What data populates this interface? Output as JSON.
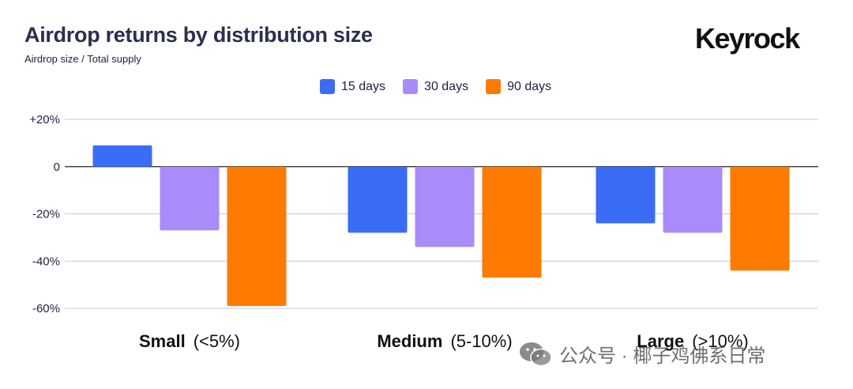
{
  "header": {
    "title": "Airdrop returns by distribution size",
    "subtitle": "Airdrop size / Total supply",
    "brand": "Keyrock"
  },
  "watermark": {
    "text": "公众号 · 椰子鸡佛系日常",
    "icon": "wechat-icon"
  },
  "chart_data": {
    "type": "bar",
    "title": "Airdrop returns by distribution size",
    "subtitle": "Airdrop size / Total supply",
    "xlabel": "",
    "ylabel": "",
    "categories": [
      {
        "bold": "Small",
        "detail": "(<5%)"
      },
      {
        "bold": "Medium",
        "detail": "(5-10%)"
      },
      {
        "bold": "Large",
        "detail": "(>10%)"
      }
    ],
    "series": [
      {
        "name": "15 days",
        "color": "#3b6cf6",
        "values": [
          9,
          -28,
          -24
        ]
      },
      {
        "name": "30 days",
        "color": "#a98bfa",
        "values": [
          -27,
          -34,
          -28
        ]
      },
      {
        "name": "90 days",
        "color": "#ff7a00",
        "values": [
          -59,
          -47,
          -44
        ]
      }
    ],
    "ylim": [
      -60,
      20
    ],
    "yticks": [
      {
        "value": 20,
        "label": "+20%"
      },
      {
        "value": 0,
        "label": "0"
      },
      {
        "value": -20,
        "label": "-20%"
      },
      {
        "value": -40,
        "label": "-40%"
      },
      {
        "value": -60,
        "label": "-60%"
      }
    ],
    "grid": true,
    "legend_position": "top-center"
  }
}
